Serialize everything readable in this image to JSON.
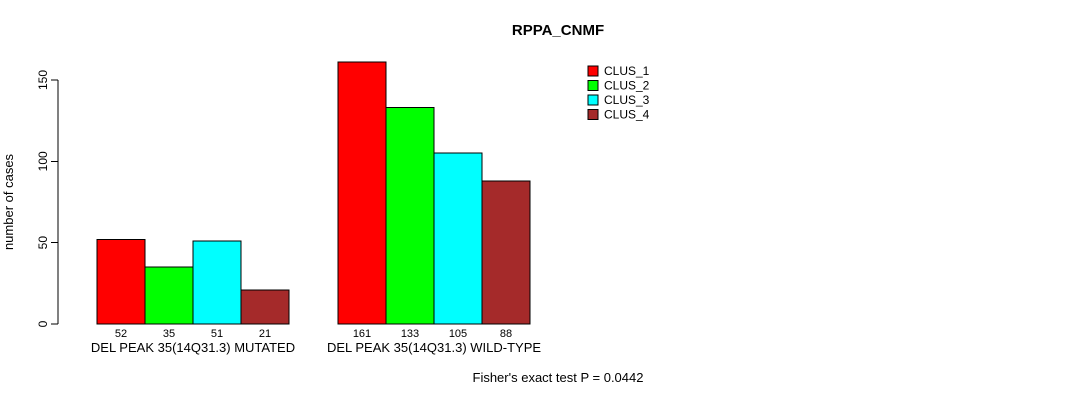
{
  "title": "RPPA_CNMF",
  "y_axis_label": "number of cases",
  "footer": "Fisher's exact test P = 0.0442",
  "legend": [
    {
      "label": "CLUS_1",
      "color": "#FF0000"
    },
    {
      "label": "CLUS_2",
      "color": "#00FF00"
    },
    {
      "label": "CLUS_3",
      "color": "#00FFFF"
    },
    {
      "label": "CLUS_4",
      "color": "#A52A2A"
    }
  ],
  "chart_data": {
    "type": "bar",
    "title": "RPPA_CNMF",
    "ylabel": "number of cases",
    "xlabel": "",
    "yticks": [
      0,
      50,
      100,
      150
    ],
    "ylim": [
      0,
      165
    ],
    "grid": false,
    "legend_position": "top-right",
    "series": [
      "CLUS_1",
      "CLUS_2",
      "CLUS_3",
      "CLUS_4"
    ],
    "series_colors": [
      "#FF0000",
      "#00FF00",
      "#00FFFF",
      "#A52A2A"
    ],
    "groups": [
      {
        "category": "DEL PEAK 35(14Q31.3) MUTATED",
        "values": [
          52,
          35,
          51,
          21
        ]
      },
      {
        "category": "DEL PEAK 35(14Q31.3) WILD-TYPE",
        "values": [
          161,
          133,
          105,
          88
        ]
      }
    ],
    "bar_value_labels_shown": true,
    "annotation": "Fisher's exact test P = 0.0442"
  }
}
